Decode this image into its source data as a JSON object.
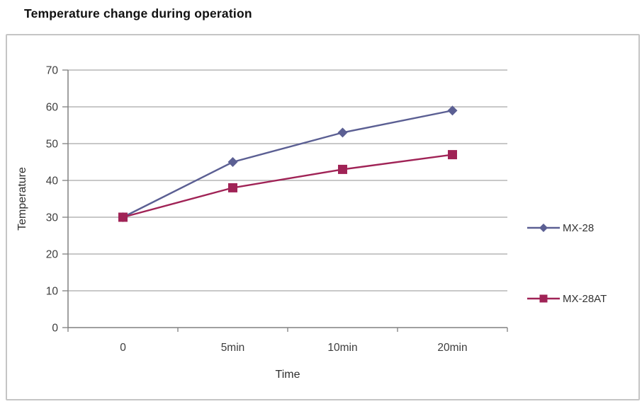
{
  "chart_data": {
    "type": "line",
    "title": "Temperature change during operation",
    "categories": [
      "0",
      "5min",
      "10min",
      "20min"
    ],
    "series": [
      {
        "name": "MX-28",
        "marker": "diamond",
        "color": "#5b5f93",
        "values": [
          30,
          45,
          53,
          59
        ]
      },
      {
        "name": "MX-28AT",
        "marker": "square",
        "color": "#a02356",
        "values": [
          30,
          38,
          43,
          47
        ]
      }
    ],
    "xlabel": "Time",
    "ylabel": "Temperature",
    "ylim": [
      0,
      70
    ],
    "ytick_step": 10,
    "grid": true,
    "legend_position": "right",
    "grid_color": "#a6a6a6",
    "axis_color": "#808080"
  }
}
